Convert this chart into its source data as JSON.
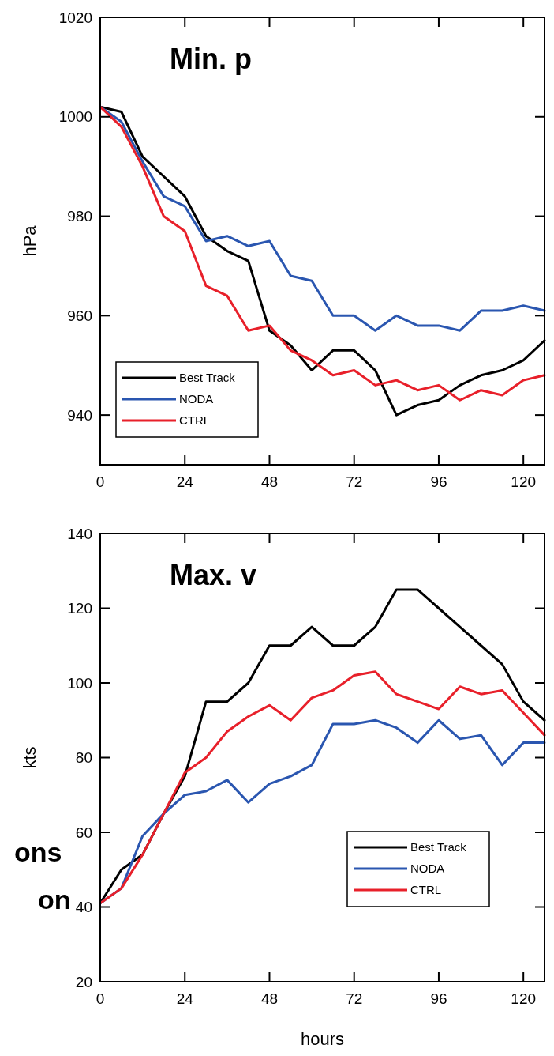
{
  "chart_data": [
    {
      "type": "line",
      "title": "Min. p",
      "ylabel": "hPa",
      "x": [
        0,
        6,
        12,
        18,
        24,
        30,
        36,
        42,
        48,
        54,
        60,
        66,
        72,
        78,
        84,
        90,
        96,
        102,
        108,
        114,
        120,
        126
      ],
      "xlim": [
        0,
        126
      ],
      "xticks": [
        0,
        24,
        48,
        72,
        96,
        120
      ],
      "ylim": [
        930,
        1020
      ],
      "yticks": [
        940,
        960,
        980,
        1000,
        1020
      ],
      "grid": false,
      "legend": "bottom left",
      "marker": "none",
      "line_style": "solid",
      "series": [
        {
          "name": "Best Track",
          "color": "#000000",
          "values": [
            1002,
            1001,
            992,
            988,
            984,
            976,
            973,
            971,
            957,
            954,
            949,
            953,
            953,
            949,
            940,
            942,
            943,
            946,
            948,
            949,
            951,
            955
          ]
        },
        {
          "name": "NODA",
          "color": "#2a56b0",
          "values": [
            1002,
            999,
            991,
            984,
            982,
            975,
            976,
            974,
            975,
            968,
            967,
            960,
            960,
            957,
            960,
            958,
            958,
            957,
            961,
            961,
            962,
            961
          ]
        },
        {
          "name": "CTRL",
          "color": "#e8202a",
          "values": [
            1002,
            998,
            990,
            980,
            977,
            966,
            964,
            957,
            958,
            953,
            951,
            948,
            949,
            946,
            947,
            945,
            946,
            943,
            945,
            944,
            947,
            948
          ]
        }
      ]
    },
    {
      "type": "line",
      "title": "Max. v",
      "ylabel": "kts",
      "xlabel": "hours",
      "x": [
        0,
        6,
        12,
        18,
        24,
        30,
        36,
        42,
        48,
        54,
        60,
        66,
        72,
        78,
        84,
        90,
        96,
        102,
        108,
        114,
        120,
        126
      ],
      "xlim": [
        0,
        126
      ],
      "xticks": [
        0,
        24,
        48,
        72,
        96,
        120
      ],
      "ylim": [
        20,
        140
      ],
      "yticks": [
        20,
        40,
        60,
        80,
        100,
        120,
        140
      ],
      "grid": false,
      "legend": "bottom right",
      "marker": "none",
      "line_style": "solid",
      "annotations": [
        "ons",
        "on"
      ],
      "series": [
        {
          "name": "Best Track",
          "color": "#000000",
          "values": [
            41,
            50,
            54,
            65,
            75,
            95,
            95,
            100,
            110,
            110,
            115,
            110,
            110,
            115,
            125,
            125,
            120,
            115,
            110,
            105,
            95,
            90
          ]
        },
        {
          "name": "NODA",
          "color": "#2a56b0",
          "values": [
            41,
            45,
            59,
            65,
            70,
            71,
            74,
            68,
            73,
            75,
            78,
            89,
            89,
            90,
            88,
            84,
            90,
            85,
            86,
            78,
            84,
            84
          ]
        },
        {
          "name": "CTRL",
          "color": "#e8202a",
          "values": [
            41,
            45,
            54,
            65,
            76,
            80,
            87,
            91,
            94,
            90,
            96,
            98,
            102,
            103,
            97,
            95,
            93,
            99,
            97,
            98,
            92,
            86
          ]
        }
      ]
    }
  ]
}
